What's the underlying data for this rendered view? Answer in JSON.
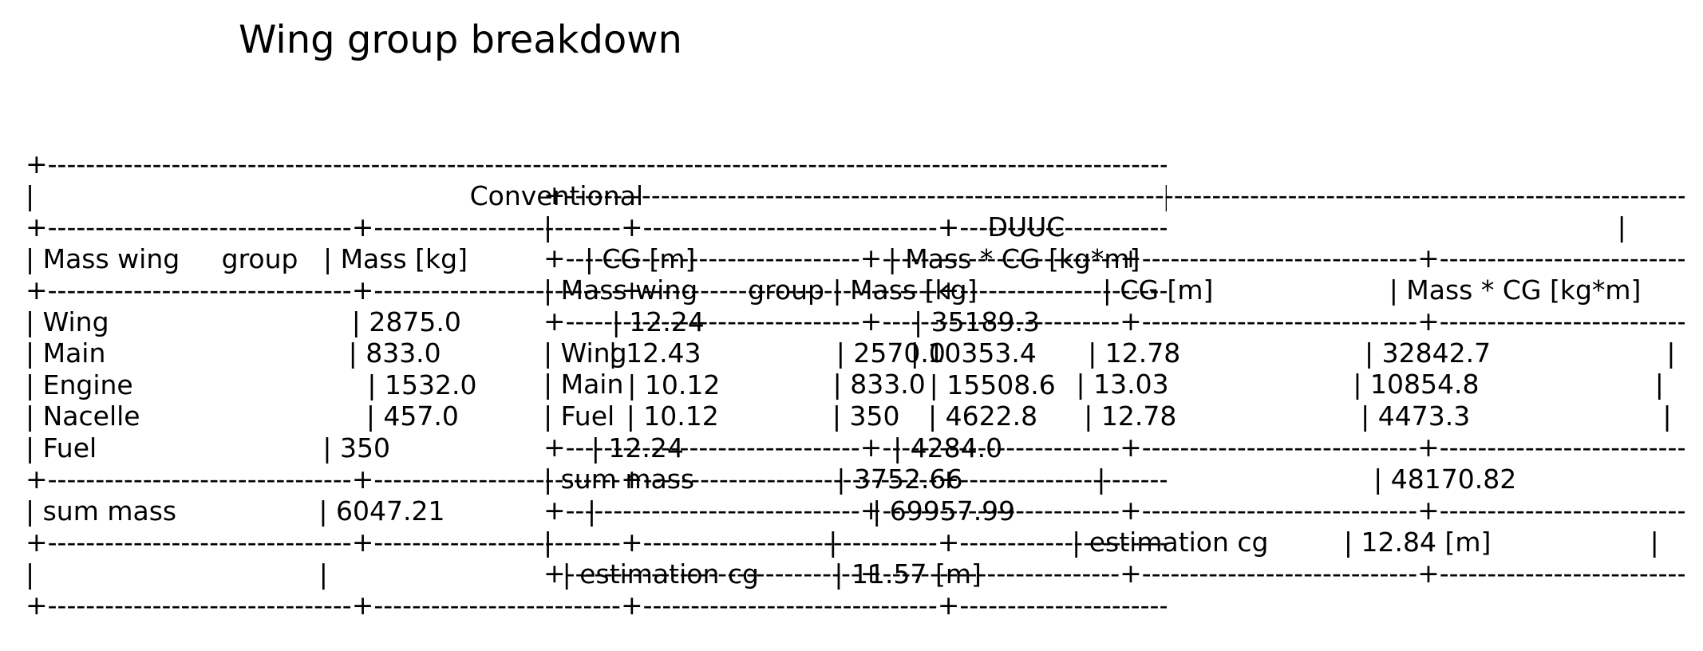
{
  "title": "Wing group breakdown",
  "conventional_table": {
    "lines": [
      "+-------------------------------------------------------------------------------------------------------------------------------+",
      "|                                                    Conventional                                                              |",
      "+--------------------------------+--------------------------+-------------------------------+-------------------------------+",
      "| Mass wing     group   | Mass [kg]              | CG [m]                       | Mass * CG [kg*m]       |",
      "+--------------------------------+--------------------------+-------------------------------+-------------------------------+",
      "| Wing                             | 2875.0                  | 12.24                         | 35189.3                        |",
      "| Main                             | 833.0                    | 12.43                         | 10353.4                        |",
      "| Engine                            | 1532.0                  | 10.12                         | 15508.6                        |",
      "| Nacelle                           | 457.0                    | 10.12                         | 4622.8                          |",
      "| Fuel                           | 350                        | 12.24                         | 4284.0                          |",
      "+--------------------------------+--------------------------+-------------------------------+-------------------------------+",
      "| sum mass                 | 6047.21                 |                                 | 69957.99                      |",
      "+--------------------------------+--------------------------+-------------------------------+-------------------------------+",
      "|                                  |                            | estimation cg         | 11.57 [m]                      |",
      "+--------------------------------+--------------------------+-------------------------------+-------------------------------+"
    ]
  },
  "duuc_table": {
    "lines": [
      "+-------------------------------------------------------------------------------------------------------------------------+",
      "|                                                    DUUC                                                                  |",
      "+-------------------------------+-------------------------+-----------------------------+--------------------------------+",
      "| Mass wing      group | Mass [kg]               | CG [m]                     | Mass * CG [kg*m]      |",
      "+-------------------------------+-------------------------+-----------------------------+--------------------------------+",
      "| Wing                         | 2570.0                 | 12.78                      | 32842.7                     |",
      "| Main                         | 833.0                  | 13.03                      | 10854.8                     |",
      "| Fuel                          | 350                      | 12.78                      | 4473.3                       |",
      "+-------------------------------+-------------------------+-----------------------------+--------------------------------+",
      "| sum mass                 | 3752.66                |                                | 48170.82                    |",
      "+-------------------------------+-------------------------+-----------------------------+--------------------------------+",
      "|                                 |                            | estimation cg         | 12.84 [m]                   |",
      "+-------------------------------+-------------------------+-----------------------------+--------------------------------+"
    ]
  }
}
